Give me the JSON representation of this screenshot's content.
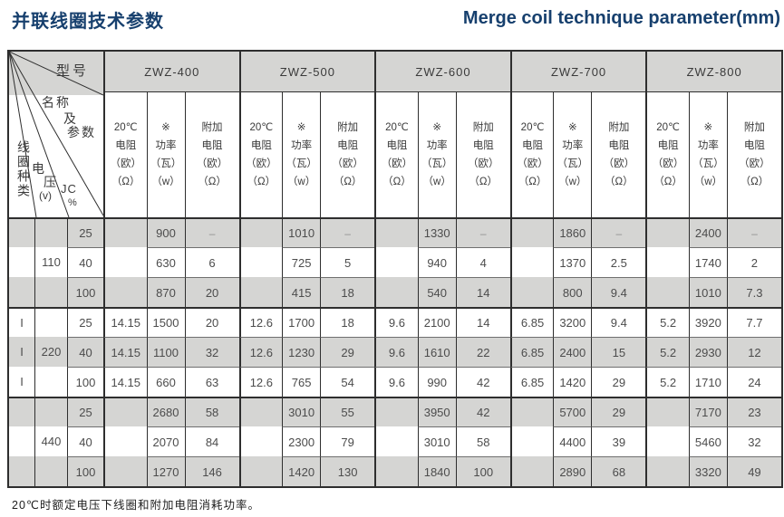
{
  "page": {
    "title_zh": "并联线圈技术参数",
    "title_en": "Merge coil technique parameter(mm)",
    "footnote": "20℃时额定电压下线圈和附加电阻消耗功率。"
  },
  "colors": {
    "accent": "#17406e",
    "stripe_gray": "#d5d5d3",
    "border_dark": "#2e2e2e"
  },
  "table": {
    "corner": {
      "model": "型号",
      "name_line1": "名称",
      "name_line2": "及",
      "name_line3": "参数",
      "coil_type": "线圈种类",
      "volt_1": "电",
      "volt_2": "压",
      "volt_3": "(v)",
      "jc": "JC",
      "jc_pct": "%"
    },
    "models": [
      "ZWZ-400",
      "ZWZ-500",
      "ZWZ-600",
      "ZWZ-700",
      "ZWZ-800"
    ],
    "sub_headers": {
      "resistance": "20℃\n电阻\n（欧）\n（Ω）",
      "power": "※\n功率\n（瓦）\n（w）",
      "extra": "附加\n电阻\n（欧）\n（Ω）"
    },
    "sections": [
      {
        "coil_type": "",
        "voltage": "110",
        "rows": [
          {
            "jc": "25",
            "cells": [
              "",
              "900",
              "–",
              "",
              "1010",
              "–",
              "",
              "1330",
              "–",
              "",
              "1860",
              "–",
              "",
              "2400",
              "–"
            ]
          },
          {
            "jc": "40",
            "cells": [
              "",
              "630",
              "6",
              "",
              "725",
              "5",
              "",
              "940",
              "4",
              "",
              "1370",
              "2.5",
              "",
              "1740",
              "2"
            ]
          },
          {
            "jc": "100",
            "cells": [
              "",
              "870",
              "20",
              "",
              "415",
              "18",
              "",
              "540",
              "14",
              "",
              "800",
              "9.4",
              "",
              "1010",
              "7.3"
            ]
          }
        ]
      },
      {
        "coil_type": "I",
        "voltage": "220",
        "rows": [
          {
            "jc": "25",
            "cells": [
              "14.15",
              "1500",
              "20",
              "12.6",
              "1700",
              "18",
              "9.6",
              "2100",
              "14",
              "6.85",
              "3200",
              "9.4",
              "5.2",
              "3920",
              "7.7"
            ]
          },
          {
            "jc": "40",
            "cells": [
              "14.15",
              "1100",
              "32",
              "12.6",
              "1230",
              "29",
              "9.6",
              "1610",
              "22",
              "6.85",
              "2400",
              "15",
              "5.2",
              "2930",
              "12"
            ]
          },
          {
            "jc": "100",
            "cells": [
              "14.15",
              "660",
              "63",
              "12.6",
              "765",
              "54",
              "9.6",
              "990",
              "42",
              "6.85",
              "1420",
              "29",
              "5.2",
              "1710",
              "24"
            ]
          }
        ]
      },
      {
        "coil_type": "",
        "voltage": "440",
        "rows": [
          {
            "jc": "25",
            "cells": [
              "",
              "2680",
              "58",
              "",
              "3010",
              "55",
              "",
              "3950",
              "42",
              "",
              "5700",
              "29",
              "",
              "7170",
              "23"
            ]
          },
          {
            "jc": "40",
            "cells": [
              "",
              "2070",
              "84",
              "",
              "2300",
              "79",
              "",
              "3010",
              "58",
              "",
              "4400",
              "39",
              "",
              "5460",
              "32"
            ]
          },
          {
            "jc": "100",
            "cells": [
              "",
              "1270",
              "146",
              "",
              "1420",
              "130",
              "",
              "1840",
              "100",
              "",
              "2890",
              "68",
              "",
              "3320",
              "49"
            ]
          }
        ]
      }
    ]
  }
}
